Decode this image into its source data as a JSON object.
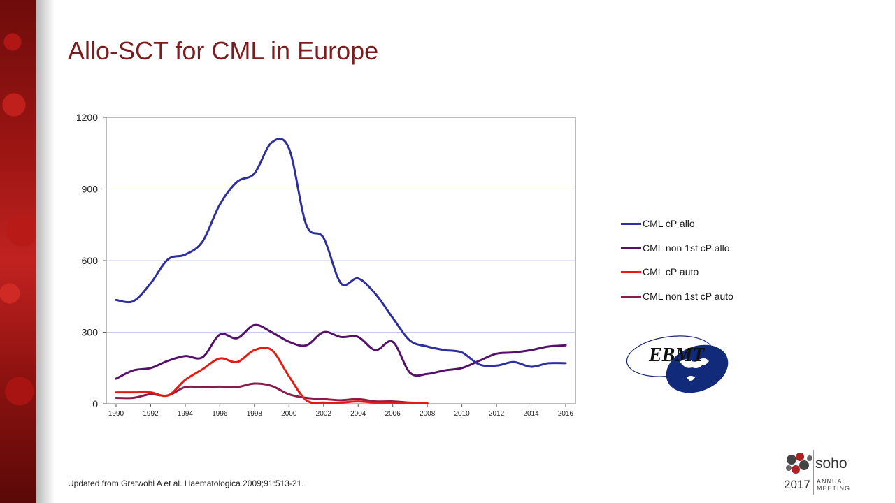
{
  "slide": {
    "title": "Allo-SCT for CML in Europe",
    "citation": "Updated from Gratwohl A et al. Haematologica 2009;91:513-21."
  },
  "logos": {
    "ebmt": "EBMT",
    "soho_name": "soho",
    "soho_year": "2017",
    "soho_line1": "ANNUAL",
    "soho_line2": "MEETING"
  },
  "colors": {
    "title": "#7b1c1e",
    "accent_band": "#b01a18",
    "grid": "#c8cbea",
    "axis": "#555555"
  },
  "chart_data": {
    "type": "line",
    "title": "",
    "xlabel": "",
    "ylabel": "",
    "xlim": [
      1990,
      2016
    ],
    "ylim": [
      0,
      1200
    ],
    "yticks": [
      "0",
      "300",
      "600",
      "900",
      "1200"
    ],
    "xticks": [
      "1990",
      "1992",
      "1994",
      "1996",
      "1998",
      "2000",
      "2002",
      "2004",
      "2006",
      "2008",
      "2010",
      "2012",
      "2014",
      "2016"
    ],
    "grid": true,
    "legend_position": "right",
    "x": [
      1990,
      1991,
      1992,
      1993,
      1994,
      1995,
      1996,
      1997,
      1998,
      1999,
      2000,
      2001,
      2002,
      2003,
      2004,
      2005,
      2006,
      2007,
      2008,
      2009,
      2010,
      2011,
      2012,
      2013,
      2014,
      2015,
      2016
    ],
    "series": [
      {
        "name": "CML cP allo",
        "color": "#2e2f9e",
        "values": [
          435,
          430,
          505,
          605,
          625,
          680,
          835,
          930,
          965,
          1095,
          1070,
          750,
          695,
          505,
          525,
          460,
          360,
          265,
          240,
          225,
          215,
          165,
          160,
          175,
          155,
          170,
          170
        ]
      },
      {
        "name": "CML non 1st cP allo",
        "color": "#55116a",
        "values": [
          105,
          140,
          150,
          180,
          200,
          195,
          290,
          275,
          330,
          300,
          260,
          245,
          300,
          280,
          280,
          225,
          260,
          130,
          125,
          140,
          150,
          180,
          210,
          215,
          225,
          240,
          245
        ]
      },
      {
        "name": "CML cP auto",
        "color": "#e31b14",
        "values": [
          48,
          48,
          48,
          35,
          100,
          145,
          190,
          175,
          225,
          225,
          115,
          15,
          5,
          5,
          10,
          5,
          5,
          2,
          2,
          null,
          null,
          null,
          null,
          null,
          null,
          null,
          null
        ]
      },
      {
        "name": "CML non 1st cP auto",
        "color": "#8c1a4a",
        "values": [
          25,
          25,
          40,
          35,
          70,
          70,
          72,
          70,
          85,
          75,
          40,
          25,
          20,
          15,
          20,
          10,
          10,
          5,
          2,
          null,
          null,
          null,
          null,
          null,
          null,
          null,
          null
        ]
      }
    ]
  }
}
